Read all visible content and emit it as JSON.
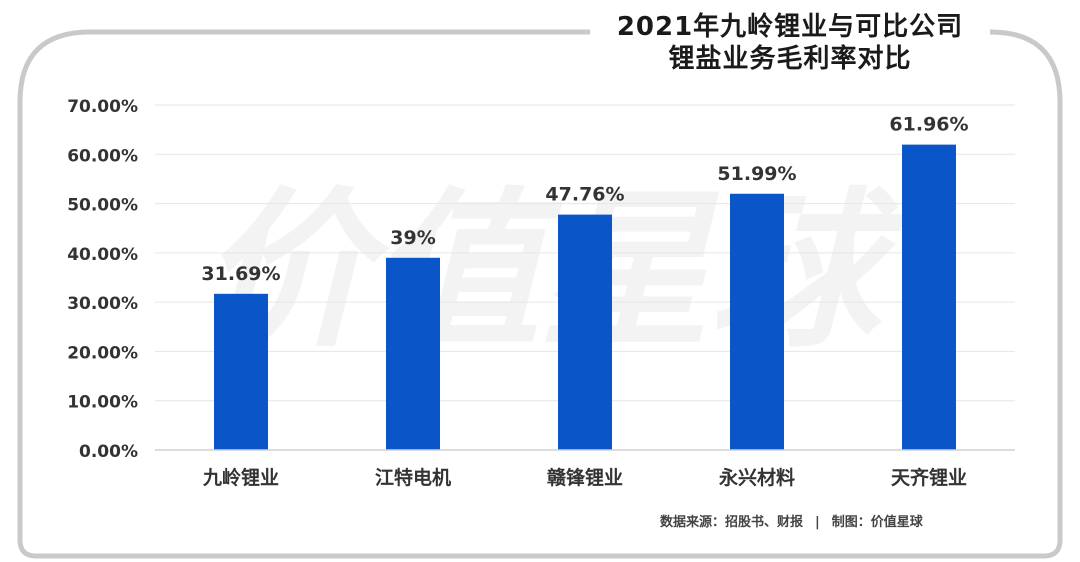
{
  "title": {
    "line1": "2021年九岭锂业与可比公司",
    "line2": "锂盐业务毛利率对比"
  },
  "watermark": "价值星球",
  "footer": {
    "source": "数据来源：招股书、财报",
    "separator": "|",
    "credit": "制图：价值星球"
  },
  "colors": {
    "bar": "#0a56c9",
    "frame": "#c9c9c9",
    "text": "#333333"
  },
  "chart_data": {
    "type": "bar",
    "categories": [
      "九岭锂业",
      "江特电机",
      "赣锋锂业",
      "永兴材料",
      "天齐锂业"
    ],
    "values": [
      31.69,
      39,
      47.76,
      51.99,
      61.96
    ],
    "data_labels": [
      "31.69%",
      "39%",
      "47.76%",
      "51.99%",
      "61.96%"
    ],
    "y_ticks": [
      "0.00%",
      "10.00%",
      "20.00%",
      "30.00%",
      "40.00%",
      "50.00%",
      "60.00%",
      "70.00%"
    ],
    "ylim": [
      0,
      70
    ],
    "grid": true,
    "legend": "none"
  }
}
